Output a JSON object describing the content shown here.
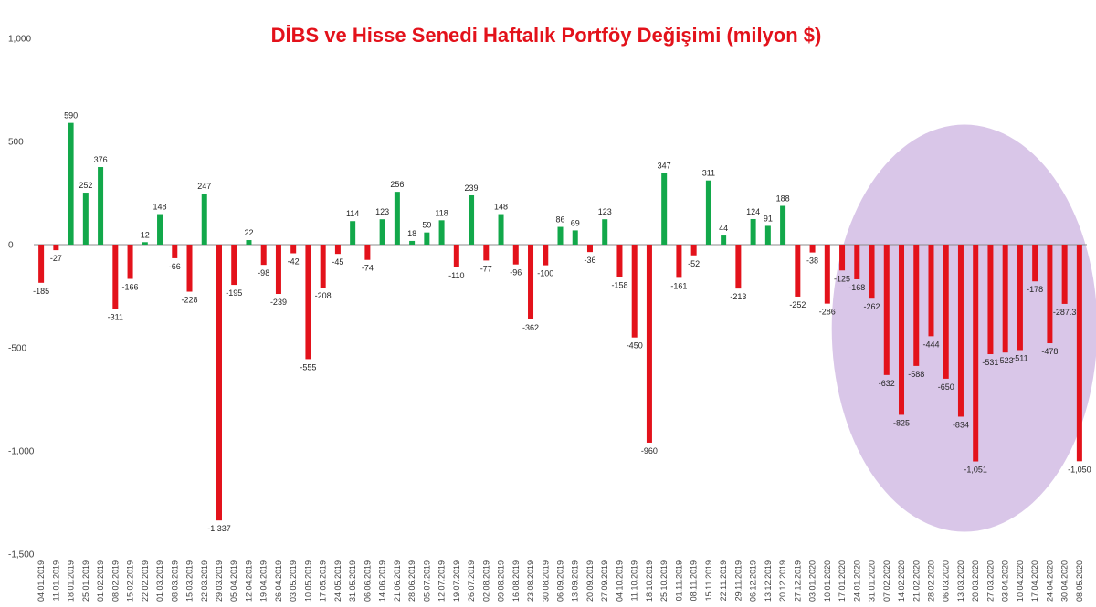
{
  "chart_data": {
    "type": "bar",
    "title": "DİBS ve Hisse Senedi Haftalık Portföy Değişimi (milyon $)",
    "xlabel": "",
    "ylabel": "",
    "ylim": [
      -1500,
      1000
    ],
    "yticks": [
      1000,
      500,
      0,
      -500,
      -1000,
      -1500
    ],
    "ytick_labels": [
      "1,000",
      "500",
      "0",
      "-500",
      "-1,000",
      "-1,500"
    ],
    "grid": false,
    "legend": "none",
    "colors": {
      "positive": "#12a84a",
      "negative": "#e3121b",
      "highlight": "#d9c6e8",
      "title": "#e3121b"
    },
    "highlight_region": {
      "from_category": "24.01.2020",
      "to_category": "08.05.2020",
      "shape": "ellipse"
    },
    "categories": [
      "04.01.2019",
      "11.01.2019",
      "18.01.2019",
      "25.01.2019",
      "01.02.2019",
      "08.02.2019",
      "15.02.2019",
      "22.02.2019",
      "01.03.2019",
      "08.03.2019",
      "15.03.2019",
      "22.03.2019",
      "29.03.2019",
      "05.04.2019",
      "12.04.2019",
      "19.04.2019",
      "26.04.2019",
      "03.05.2019",
      "10.05.2019",
      "17.05.2019",
      "24.05.2019",
      "31.05.2019",
      "06.06.2019",
      "14.06.2019",
      "21.06.2019",
      "28.06.2019",
      "05.07.2019",
      "12.07.2019",
      "19.07.2019",
      "26.07.2019",
      "02.08.2019",
      "09.08.2019",
      "16.08.2019",
      "23.08.2019",
      "30.08.2019",
      "06.09.2019",
      "13.09.2019",
      "20.09.2019",
      "27.09.2019",
      "04.10.2019",
      "11.10.2019",
      "18.10.2019",
      "25.10.2019",
      "01.11.2019",
      "08.11.2019",
      "15.11.2019",
      "22.11.2019",
      "29.11.2019",
      "06.12.2019",
      "13.12.2019",
      "20.12.2019",
      "27.12.2019",
      "03.01.2020",
      "10.01.2020",
      "17.01.2020",
      "24.01.2020",
      "31.01.2020",
      "07.02.2020",
      "14.02.2020",
      "21.02.2020",
      "28.02.2020",
      "06.03.2020",
      "13.03.2020",
      "20.03.2020",
      "27.03.2020",
      "03.04.2020",
      "10.04.2020",
      "17.04.2020",
      "24.04.2020",
      "30.04.2020",
      "08.05.2020"
    ],
    "values": [
      -185,
      -27,
      590,
      252,
      376,
      -311,
      -166,
      12,
      148,
      -66,
      -228,
      247,
      -1337,
      -195,
      22,
      -98,
      -239,
      -42,
      -555,
      -208,
      -45,
      114,
      -74,
      123,
      256,
      18,
      59,
      118,
      -110,
      239,
      -77,
      148,
      -96,
      -362,
      -100,
      86,
      69,
      -36,
      123,
      -158,
      -450,
      -960,
      347,
      -161,
      -52,
      311,
      44,
      -213,
      124,
      91,
      188,
      -252,
      -38,
      -286,
      -125,
      -168,
      -262,
      -632,
      -825,
      -588,
      -444,
      -650,
      -834,
      -1051,
      -531,
      -523,
      -511,
      -178,
      -478,
      -287.3,
      -1050
    ],
    "value_labels": [
      "-185",
      "-27",
      "590",
      "252",
      "376",
      "-311",
      "-166",
      "12",
      "148",
      "-66",
      "-228",
      "247",
      "-1,337",
      "-195",
      "22",
      "-98",
      "-239",
      "-42",
      "-555",
      "-208",
      "-45",
      "114",
      "-74",
      "123",
      "256",
      "18",
      "59",
      "118",
      "-110",
      "239",
      "-77",
      "148",
      "-96",
      "-362",
      "-100",
      "86",
      "69",
      "-36",
      "123",
      "-158",
      "-450",
      "-960",
      "347",
      "-161",
      "-52",
      "311",
      "44",
      "-213",
      "124",
      "91",
      "188",
      "-252",
      "-38",
      "-286",
      "-125",
      "-168",
      "-262",
      "-632",
      "-825",
      "-588",
      "-444",
      "-650",
      "-834",
      "-1,051",
      "-531",
      "-523",
      "-511",
      "-178",
      "-478",
      "-287.3",
      "-1,050"
    ]
  }
}
